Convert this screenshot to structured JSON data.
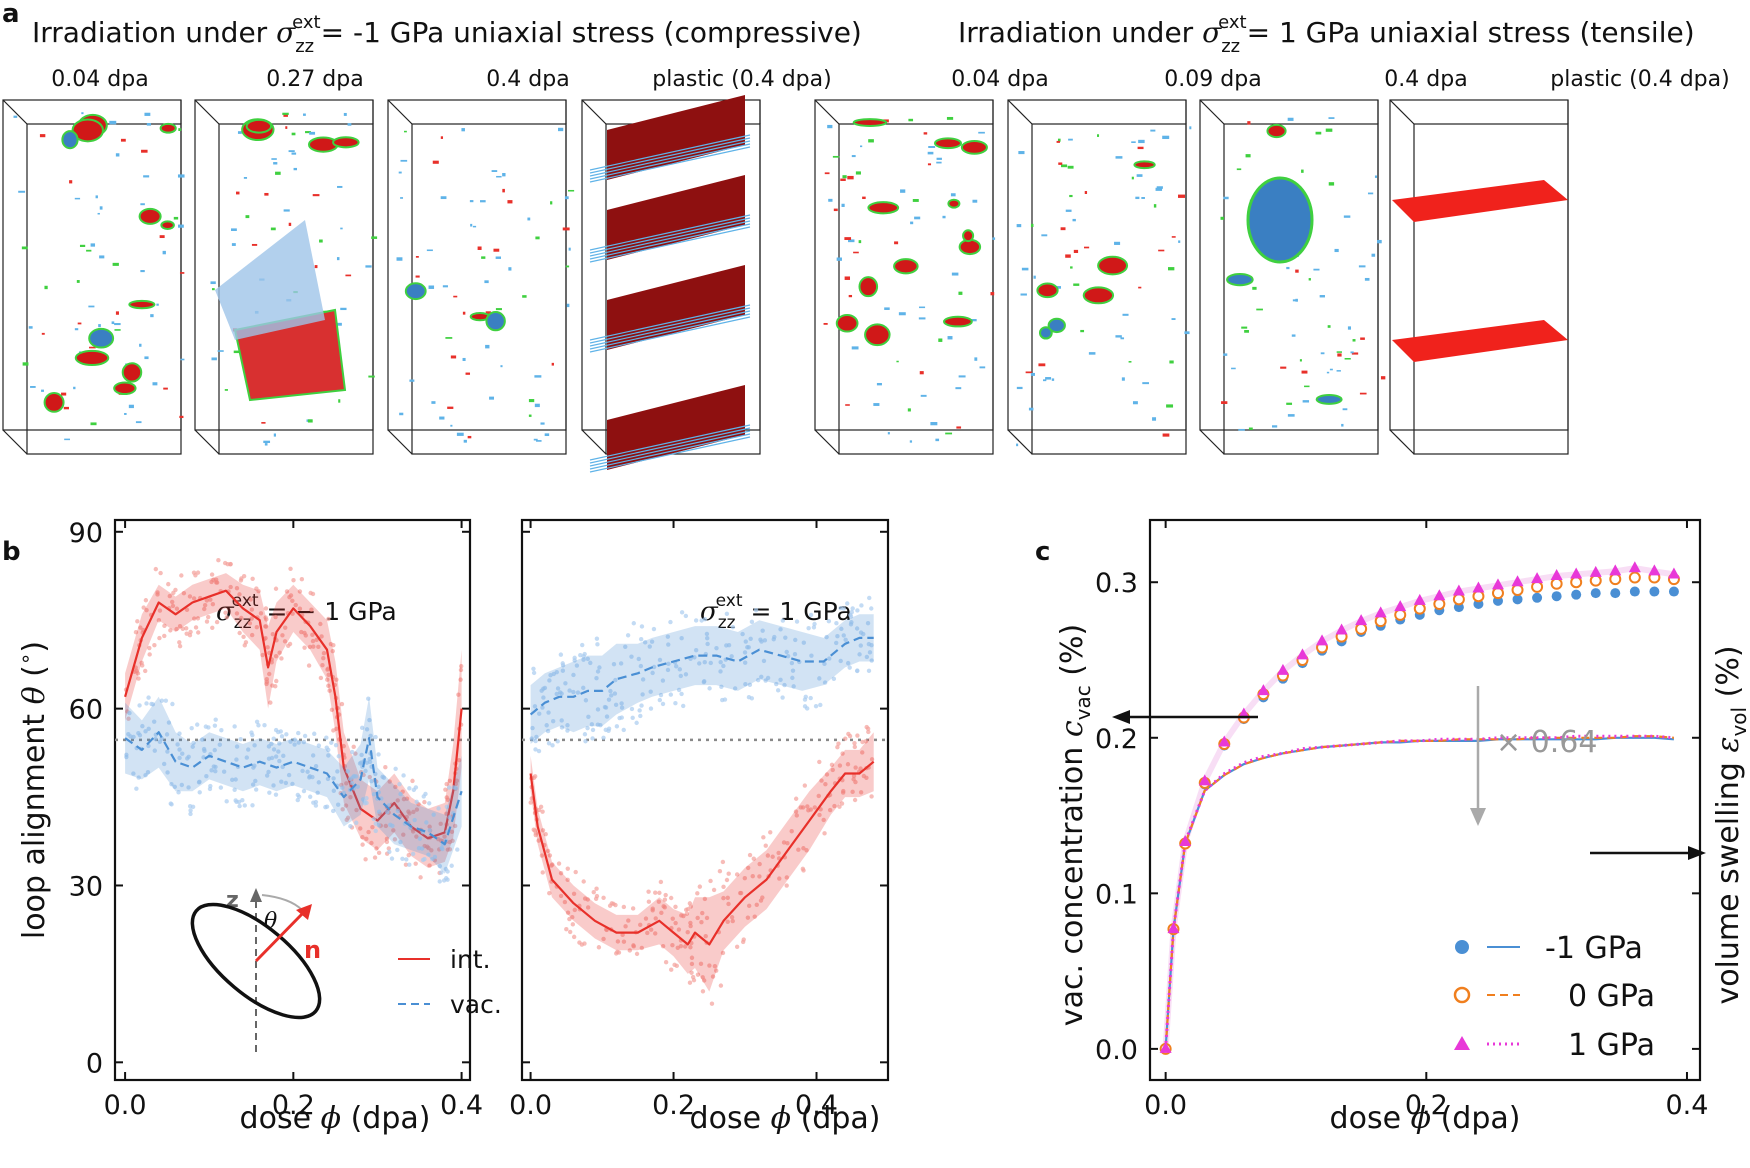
{
  "panel_a": {
    "label": "a",
    "left_title_pre": "Irradiation under ",
    "left_title_post": "= -1 GPa uniaxial stress (compressive)",
    "right_title_pre": "Irradiation under ",
    "right_title_post": "= 1 GPa uniaxial stress (tensile)",
    "sigma_symbol": "σ",
    "sigma_sub": "zz",
    "sigma_sup": "ext",
    "left_boxes": [
      "0.04 dpa",
      "0.27 dpa",
      "0.4 dpa",
      "plastic (0.4 dpa)"
    ],
    "right_boxes": [
      "0.04 dpa",
      "0.09 dpa",
      "0.4 dpa",
      "plastic (0.4 dpa)"
    ]
  },
  "panel_b": {
    "label": "b",
    "ylabel": "loop alignment θ (°)",
    "xlabel": "dose ϕ (dpa)",
    "left_title": "σzz^ext = − 1 GPa",
    "right_title": "σzz^ext = 1 GPa",
    "legend_int": "int.",
    "legend_vac": "vac.",
    "inset_z": "z",
    "inset_theta": "θ",
    "inset_n": "n"
  },
  "panel_c": {
    "label": "c",
    "ylabel_left": "vac. concentration c_vac (%)",
    "ylabel_right": "volume swelling ε_vol (%)",
    "xlabel": "dose ϕ (dpa)",
    "scale_label": "× 0.64"
  },
  "colors": {
    "red": "#e8302a",
    "blue": "#4a8fd4",
    "orange": "#f07f1e",
    "magenta": "#e838d8",
    "dark_red": "#8e1010",
    "light_blue": "#5fb3e8",
    "green": "#3fd03f"
  },
  "chart_data": [
    {
      "id": "b-left",
      "type": "line",
      "title": "σzz^ext = −1 GPa",
      "xlabel": "dose ϕ (dpa)",
      "ylabel": "loop alignment θ (°)",
      "xlim": [
        -0.012,
        0.41
      ],
      "ylim": [
        -3,
        92
      ],
      "xticks": [
        "0.0",
        "0.2",
        "0.4"
      ],
      "yticks": [
        "0",
        "30",
        "60",
        "90"
      ],
      "reference_line": 54.7,
      "series": [
        {
          "name": "int.",
          "style": "solid",
          "x": [
            0,
            0.02,
            0.04,
            0.06,
            0.08,
            0.1,
            0.12,
            0.14,
            0.16,
            0.17,
            0.18,
            0.2,
            0.22,
            0.24,
            0.25,
            0.26,
            0.28,
            0.3,
            0.32,
            0.34,
            0.36,
            0.38,
            0.39,
            0.4
          ],
          "y": [
            62,
            72,
            78,
            76,
            78,
            79,
            80,
            77,
            75,
            67,
            73,
            77,
            74,
            70,
            62,
            50,
            43,
            41,
            44,
            40,
            38,
            39,
            46,
            60
          ],
          "band": [
            4,
            4,
            3,
            3,
            3,
            3,
            3,
            4,
            5,
            7,
            5,
            4,
            4,
            5,
            6,
            6,
            5,
            5,
            5,
            5,
            5,
            5,
            8,
            10
          ]
        },
        {
          "name": "vac.",
          "style": "dashed",
          "x": [
            0,
            0.02,
            0.04,
            0.06,
            0.08,
            0.1,
            0.12,
            0.14,
            0.16,
            0.18,
            0.2,
            0.22,
            0.24,
            0.26,
            0.28,
            0.29,
            0.3,
            0.32,
            0.34,
            0.36,
            0.38,
            0.4
          ],
          "y": [
            55,
            53,
            56,
            51,
            50,
            52,
            51,
            50,
            51,
            50,
            51,
            50,
            49,
            45,
            48,
            55,
            45,
            42,
            40,
            39,
            37,
            46
          ],
          "band": [
            6,
            5,
            6,
            5,
            4,
            4,
            4,
            4,
            4,
            4,
            4,
            4,
            4,
            5,
            6,
            7,
            5,
            5,
            4,
            4,
            5,
            6
          ]
        }
      ]
    },
    {
      "id": "b-right",
      "type": "line",
      "title": "σzz^ext = 1 GPa",
      "xlabel": "dose ϕ (dpa)",
      "xlim": [
        -0.012,
        0.5
      ],
      "ylim": [
        -3,
        92
      ],
      "xticks": [
        "0.0",
        "0.2",
        "0.4"
      ],
      "reference_line": 54.7,
      "series": [
        {
          "name": "int.",
          "style": "solid",
          "x": [
            0,
            0.01,
            0.03,
            0.06,
            0.09,
            0.12,
            0.15,
            0.18,
            0.2,
            0.22,
            0.23,
            0.25,
            0.27,
            0.3,
            0.33,
            0.36,
            0.39,
            0.42,
            0.44,
            0.46,
            0.48
          ],
          "y": [
            49,
            40,
            31,
            27,
            24,
            22,
            22,
            24,
            22,
            20,
            22,
            20,
            24,
            28,
            31,
            36,
            41,
            46,
            49,
            49,
            51
          ],
          "band": [
            3,
            3,
            3,
            3,
            3,
            3,
            3,
            4,
            4,
            5,
            6,
            8,
            5,
            5,
            5,
            5,
            5,
            4,
            4,
            4,
            5
          ]
        },
        {
          "name": "vac.",
          "style": "dashed",
          "x": [
            0,
            0.02,
            0.04,
            0.06,
            0.08,
            0.1,
            0.12,
            0.15,
            0.17,
            0.2,
            0.23,
            0.26,
            0.29,
            0.32,
            0.35,
            0.38,
            0.41,
            0.44,
            0.46,
            0.48
          ],
          "y": [
            59,
            61,
            62,
            62,
            63,
            63,
            65,
            66,
            67,
            68,
            69,
            69,
            68,
            70,
            69,
            68,
            68,
            71,
            72,
            72
          ],
          "band": [
            5,
            5,
            5,
            6,
            6,
            6,
            6,
            5,
            5,
            5,
            5,
            5,
            5,
            5,
            5,
            5,
            4,
            4,
            4,
            4
          ]
        }
      ]
    },
    {
      "id": "c",
      "type": "scatter+line",
      "xlabel": "dose ϕ (dpa)",
      "ylabel": "vac. concentration c_vac (%)",
      "ylabel_right": "volume swelling ε_vol (%)",
      "xlim": [
        -0.012,
        0.41
      ],
      "ylim": [
        -0.02,
        0.34
      ],
      "xticks": [
        "0.0",
        "0.2",
        "0.4"
      ],
      "yticks": [
        "0.0",
        "0.1",
        "0.2",
        "0.3"
      ],
      "scatter_x": [
        0,
        0.006,
        0.015,
        0.03,
        0.045,
        0.06,
        0.075,
        0.09,
        0.105,
        0.12,
        0.135,
        0.15,
        0.165,
        0.18,
        0.195,
        0.21,
        0.225,
        0.24,
        0.255,
        0.27,
        0.285,
        0.3,
        0.315,
        0.33,
        0.345,
        0.36,
        0.375,
        0.39
      ],
      "series": [
        {
          "name": "-1 GPa",
          "marker": "circle",
          "line": "solid",
          "vac": [
            0,
            0.077,
            0.132,
            0.17,
            0.195,
            0.212,
            0.226,
            0.238,
            0.248,
            0.256,
            0.262,
            0.268,
            0.272,
            0.276,
            0.279,
            0.282,
            0.284,
            0.286,
            0.288,
            0.289,
            0.29,
            0.291,
            0.292,
            0.293,
            0.293,
            0.294,
            0.294,
            0.294
          ],
          "swelling": [
            0,
            0.077,
            0.132,
            0.166,
            0.176,
            0.183,
            0.187,
            0.19,
            0.192,
            0.194,
            0.195,
            0.196,
            0.197,
            0.197,
            0.198,
            0.198,
            0.198,
            0.198,
            0.199,
            0.199,
            0.199,
            0.199,
            0.199,
            0.199,
            0.2,
            0.2,
            0.2,
            0.199
          ]
        },
        {
          "name": "0 GPa",
          "marker": "open-circle",
          "line": "dashed",
          "vac": [
            0,
            0.077,
            0.132,
            0.171,
            0.196,
            0.213,
            0.228,
            0.24,
            0.25,
            0.258,
            0.265,
            0.27,
            0.275,
            0.279,
            0.283,
            0.286,
            0.289,
            0.291,
            0.293,
            0.295,
            0.297,
            0.299,
            0.3,
            0.301,
            0.302,
            0.303,
            0.303,
            0.302
          ],
          "swelling": [
            0,
            0.077,
            0.132,
            0.166,
            0.176,
            0.183,
            0.187,
            0.19,
            0.192,
            0.194,
            0.195,
            0.196,
            0.197,
            0.198,
            0.198,
            0.198,
            0.199,
            0.199,
            0.199,
            0.199,
            0.2,
            0.2,
            0.2,
            0.2,
            0.2,
            0.201,
            0.201,
            0.2
          ]
        },
        {
          "name": "1 GPa",
          "marker": "triangle",
          "line": "dotted",
          "vac": [
            0,
            0.077,
            0.133,
            0.172,
            0.197,
            0.215,
            0.23,
            0.243,
            0.253,
            0.262,
            0.269,
            0.275,
            0.28,
            0.284,
            0.288,
            0.291,
            0.294,
            0.296,
            0.298,
            0.3,
            0.302,
            0.304,
            0.305,
            0.306,
            0.307,
            0.309,
            0.307,
            0.305
          ],
          "swelling": [
            0,
            0.077,
            0.133,
            0.166,
            0.177,
            0.184,
            0.188,
            0.19,
            0.193,
            0.194,
            0.195,
            0.196,
            0.197,
            0.198,
            0.198,
            0.199,
            0.199,
            0.199,
            0.2,
            0.2,
            0.2,
            0.2,
            0.201,
            0.201,
            0.201,
            0.201,
            0.201,
            0.2
          ]
        }
      ]
    }
  ]
}
